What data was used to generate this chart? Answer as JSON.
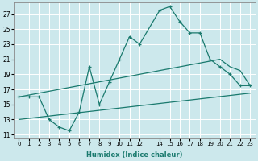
{
  "xlabel": "Humidex (Indice chaleur)",
  "bg_color": "#cce8ec",
  "grid_color": "#ffffff",
  "line_color": "#1a7a6e",
  "xlim": [
    -0.5,
    23.5
  ],
  "ylim": [
    10.5,
    28.5
  ],
  "xticks": [
    0,
    1,
    2,
    3,
    4,
    5,
    6,
    7,
    8,
    9,
    10,
    11,
    12,
    14,
    15,
    16,
    17,
    18,
    19,
    20,
    21,
    22,
    23
  ],
  "yticks": [
    11,
    13,
    15,
    17,
    19,
    21,
    23,
    25,
    27
  ],
  "line1_x": [
    0,
    1,
    2,
    3,
    4,
    5,
    6,
    7,
    8,
    9,
    10,
    11,
    12,
    14,
    15,
    16,
    17,
    18,
    19,
    20,
    21,
    22,
    23
  ],
  "line1_y": [
    16,
    16,
    16,
    13,
    12,
    11.5,
    14,
    20,
    15,
    18,
    21,
    24,
    23,
    27.5,
    28,
    26,
    24.5,
    24.5,
    21,
    20,
    19,
    17.5,
    17.5
  ],
  "line2_x": [
    0,
    20,
    21,
    22,
    23
  ],
  "line2_y": [
    16,
    21,
    20,
    19.5,
    17.5
  ],
  "line3_x": [
    0,
    23
  ],
  "line3_y": [
    13,
    16.5
  ]
}
